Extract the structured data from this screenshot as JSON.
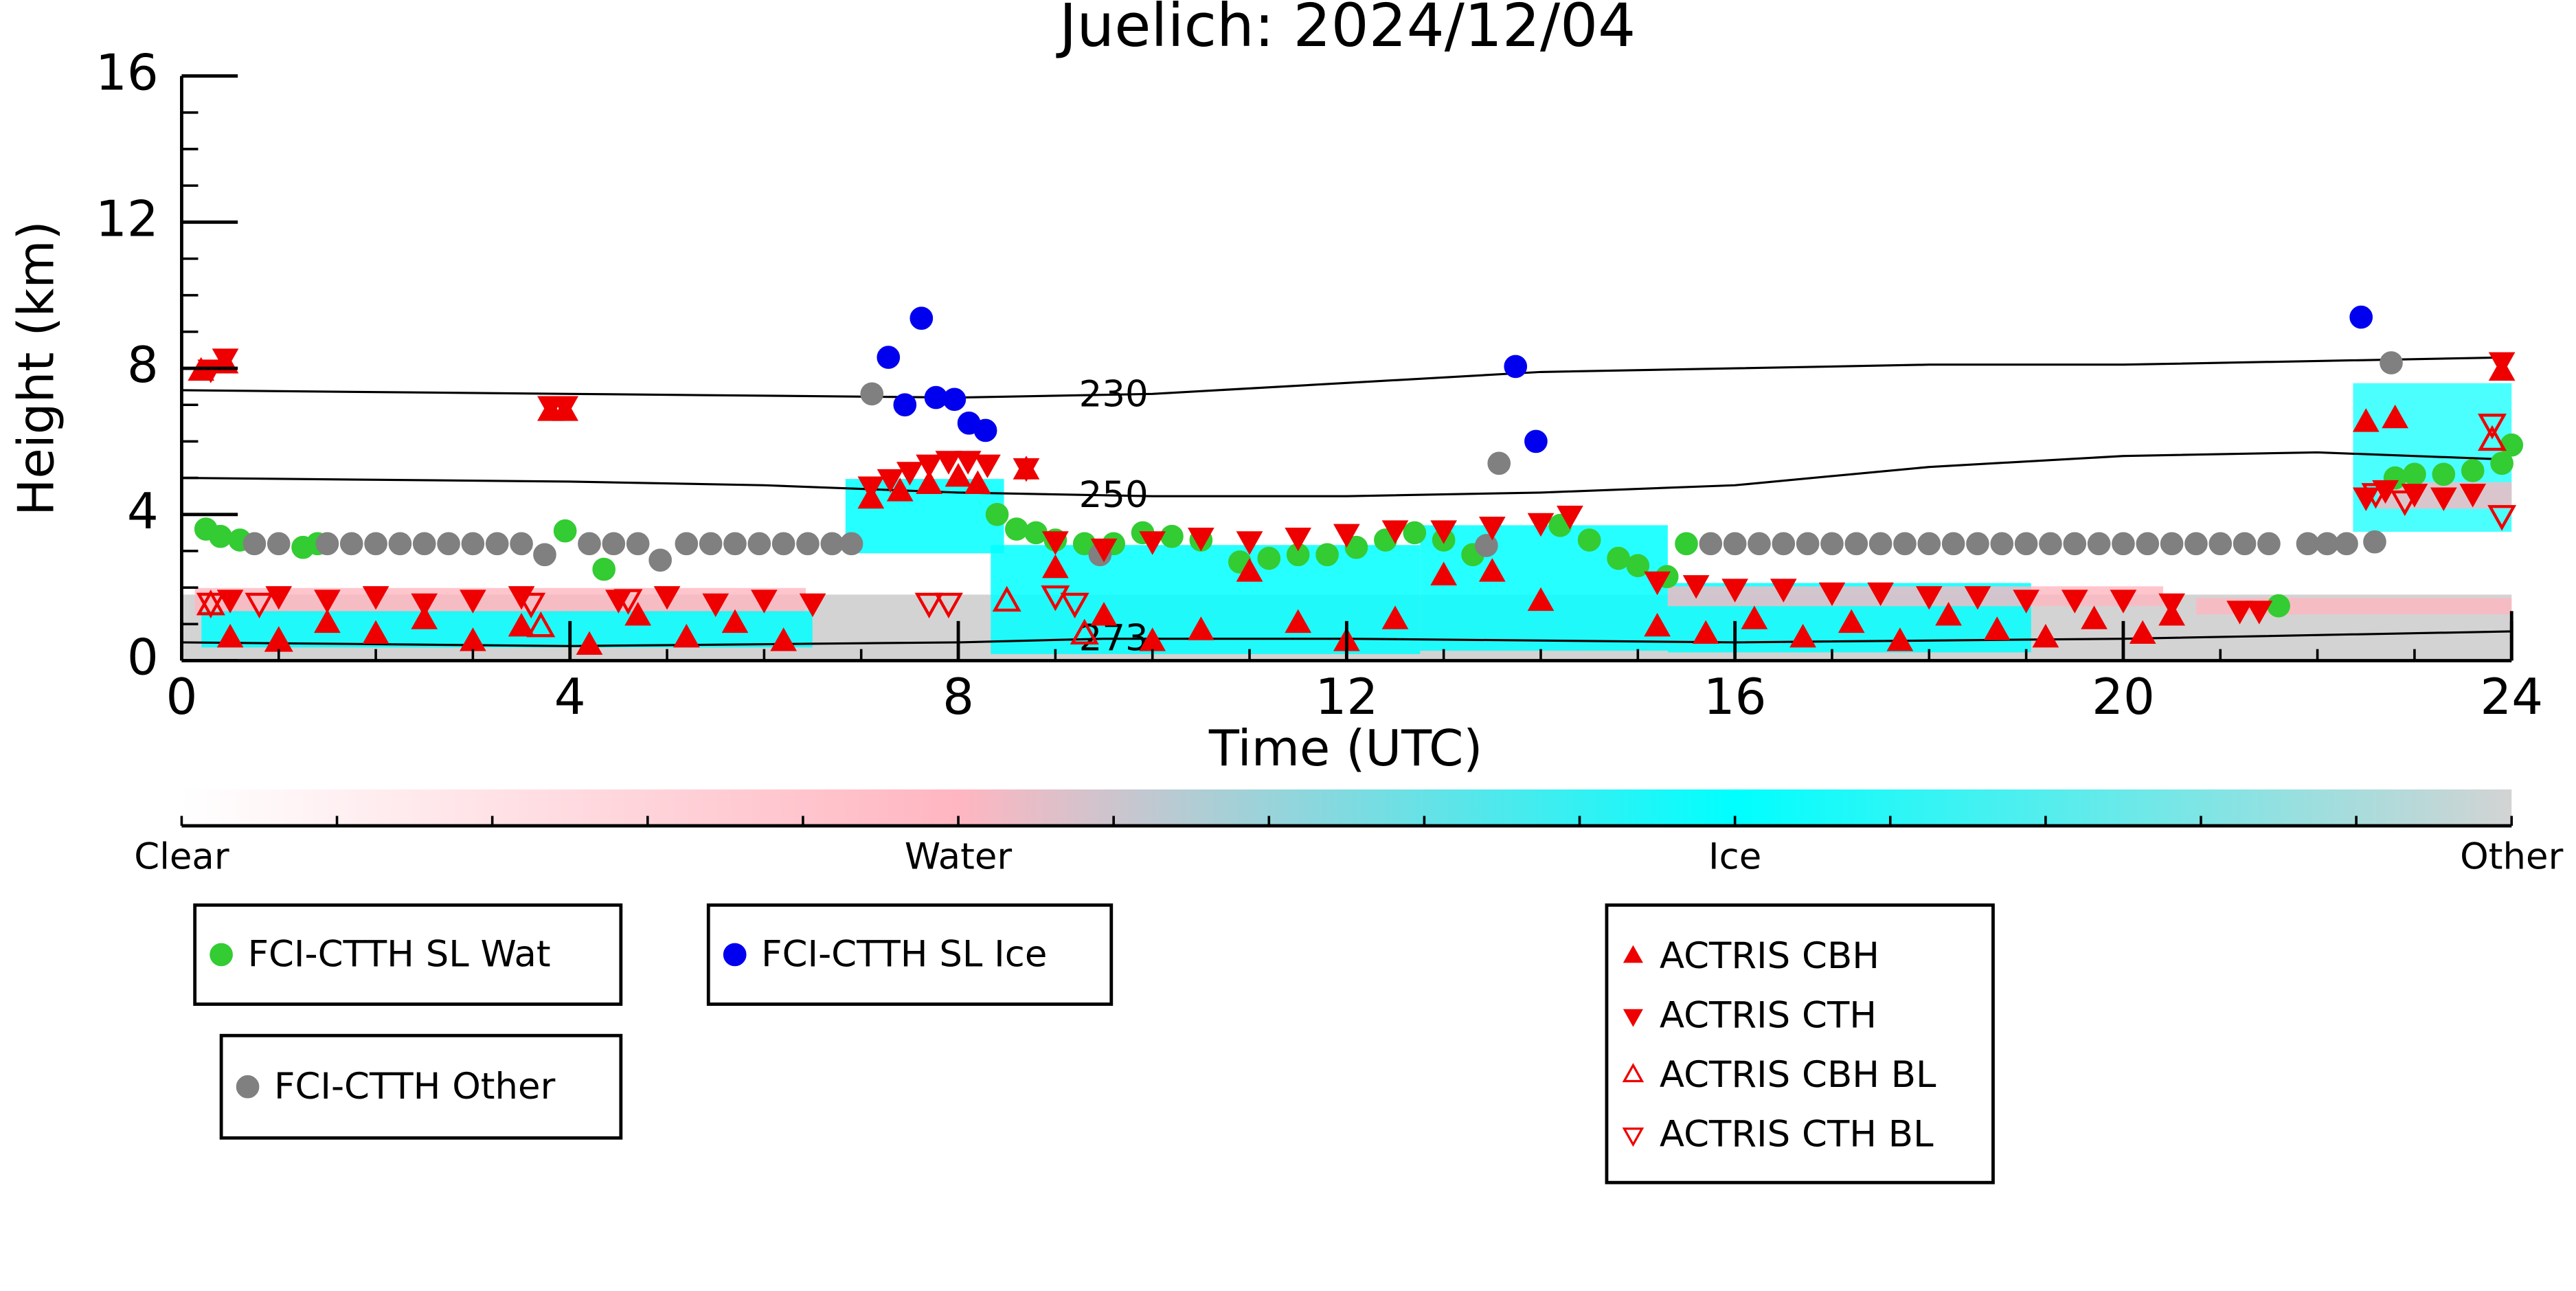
{
  "chart_data": {
    "type": "scatter",
    "title": "Juelich: 2024/12/04",
    "x_label": "Time (UTC)",
    "y_label": "Height (km)",
    "xlim": [
      0,
      24
    ],
    "ylim": [
      0,
      16
    ],
    "xticks": [
      0,
      4,
      8,
      12,
      16,
      20,
      24
    ],
    "yticks": [
      0,
      4,
      8,
      12,
      16
    ],
    "series": [
      {
        "name": "FCI-CTTH SL Wat",
        "color": "#33cc33",
        "marker": "o",
        "filled": true,
        "x": [
          0.25,
          0.4,
          0.6,
          1.25,
          1.4,
          3.95,
          4.35,
          8.4,
          8.6,
          8.8,
          9.0,
          9.3,
          9.6,
          9.9,
          10.2,
          10.5,
          10.9,
          11.2,
          11.5,
          11.8,
          12.1,
          12.4,
          12.7,
          13.0,
          13.3,
          14.2,
          14.5,
          14.8,
          15.0,
          15.3,
          15.5,
          21.6,
          22.8,
          23.0,
          23.3,
          23.6,
          23.9,
          24.0
        ],
        "values": [
          3.6,
          3.4,
          3.3,
          3.1,
          3.2,
          3.55,
          2.5,
          4.0,
          3.6,
          3.5,
          3.3,
          3.2,
          3.2,
          3.5,
          3.4,
          3.3,
          2.7,
          2.8,
          2.9,
          2.9,
          3.1,
          3.3,
          3.5,
          3.3,
          2.9,
          3.7,
          3.3,
          2.8,
          2.6,
          2.3,
          3.2,
          1.5,
          5.0,
          5.1,
          5.1,
          5.2,
          5.4,
          5.9
        ]
      },
      {
        "name": "FCI-CTTH SL Ice",
        "color": "#0000ee",
        "marker": "o",
        "filled": true,
        "x": [
          7.28,
          7.45,
          7.62,
          7.77,
          7.96,
          8.11,
          8.28,
          13.74,
          13.95,
          22.45
        ],
        "values": [
          8.3,
          7.0,
          9.37,
          7.2,
          7.15,
          6.5,
          6.3,
          8.05,
          6.0,
          9.4
        ]
      },
      {
        "name": "FCI-CTTH Other",
        "color": "#808080",
        "marker": "o",
        "filled": true,
        "x": [
          0.75,
          1.0,
          1.5,
          1.75,
          2.0,
          2.25,
          2.5,
          2.75,
          3.0,
          3.25,
          3.5,
          3.74,
          4.2,
          4.45,
          4.7,
          4.93,
          5.2,
          5.45,
          5.7,
          5.95,
          6.2,
          6.45,
          6.7,
          6.9,
          7.11,
          9.46,
          13.44,
          13.57,
          15.75,
          16.0,
          16.25,
          16.5,
          16.75,
          17.0,
          17.25,
          17.5,
          17.75,
          18.0,
          18.25,
          18.5,
          18.75,
          19.0,
          19.25,
          19.5,
          19.75,
          20.0,
          20.25,
          20.5,
          20.75,
          21.0,
          21.25,
          21.5,
          21.9,
          22.1,
          22.3,
          22.59,
          22.76
        ],
        "values": [
          3.2,
          3.2,
          3.2,
          3.2,
          3.2,
          3.2,
          3.2,
          3.2,
          3.2,
          3.2,
          3.2,
          2.9,
          3.2,
          3.2,
          3.2,
          2.75,
          3.2,
          3.2,
          3.2,
          3.2,
          3.2,
          3.2,
          3.2,
          3.2,
          7.3,
          2.9,
          3.15,
          5.4,
          3.2,
          3.2,
          3.2,
          3.2,
          3.2,
          3.2,
          3.2,
          3.2,
          3.2,
          3.2,
          3.2,
          3.2,
          3.2,
          3.2,
          3.2,
          3.2,
          3.2,
          3.2,
          3.2,
          3.2,
          3.2,
          3.2,
          3.2,
          3.2,
          3.2,
          3.2,
          3.2,
          3.25,
          8.15
        ]
      },
      {
        "name": "ACTRIS CBH",
        "color": "#ee0000",
        "marker": "^",
        "filled": true,
        "x": [
          0.2,
          0.45,
          0.5,
          1.0,
          1.5,
          2.0,
          2.5,
          3.0,
          3.5,
          3.8,
          3.95,
          4.2,
          4.7,
          5.2,
          5.7,
          6.2,
          7.1,
          7.4,
          7.7,
          8.0,
          8.2,
          8.7,
          9.0,
          9.5,
          10.0,
          10.5,
          11.0,
          11.5,
          12.0,
          12.5,
          13.0,
          13.5,
          14.0,
          15.2,
          15.7,
          16.2,
          16.7,
          17.2,
          17.7,
          18.2,
          18.7,
          19.2,
          19.7,
          20.2,
          20.5,
          22.5,
          22.8,
          23.9
        ],
        "values": [
          7.9,
          8.1,
          0.6,
          0.5,
          1.0,
          0.7,
          1.1,
          0.5,
          0.9,
          6.8,
          6.8,
          0.4,
          1.2,
          0.6,
          1.0,
          0.5,
          4.4,
          4.6,
          4.8,
          5.0,
          4.8,
          5.2,
          2.5,
          1.2,
          0.5,
          0.8,
          2.4,
          1.0,
          0.5,
          1.1,
          2.3,
          2.4,
          1.6,
          0.9,
          0.7,
          1.1,
          0.6,
          1.0,
          0.5,
          1.2,
          0.8,
          0.6,
          1.1,
          0.7,
          1.2,
          6.5,
          6.6,
          7.9
        ]
      },
      {
        "name": "ACTRIS CTH",
        "color": "#ee0000",
        "marker": "v",
        "filled": true,
        "x": [
          0.3,
          0.45,
          0.5,
          1.0,
          1.5,
          2.0,
          2.5,
          3.0,
          3.5,
          3.8,
          3.95,
          4.5,
          5.0,
          5.5,
          6.0,
          6.5,
          7.1,
          7.3,
          7.5,
          7.7,
          7.9,
          8.1,
          8.3,
          8.7,
          9.0,
          9.5,
          10.0,
          10.5,
          11.0,
          11.5,
          12.0,
          12.5,
          13.0,
          13.5,
          14.0,
          14.3,
          15.2,
          15.6,
          16.0,
          16.5,
          17.0,
          17.5,
          18.0,
          18.5,
          19.0,
          19.5,
          20.0,
          20.5,
          21.2,
          21.4,
          22.5,
          22.7,
          23.0,
          23.3,
          23.6,
          23.9
        ],
        "values": [
          8.0,
          8.3,
          1.7,
          1.8,
          1.7,
          1.8,
          1.6,
          1.7,
          1.8,
          7.0,
          7.0,
          1.7,
          1.8,
          1.6,
          1.7,
          1.6,
          4.8,
          5.0,
          5.2,
          5.4,
          5.5,
          5.5,
          5.4,
          5.3,
          3.3,
          3.1,
          3.3,
          3.4,
          3.3,
          3.4,
          3.5,
          3.6,
          3.6,
          3.7,
          3.8,
          4.0,
          2.2,
          2.1,
          2.0,
          2.0,
          1.9,
          1.9,
          1.8,
          1.8,
          1.7,
          1.7,
          1.7,
          1.6,
          1.4,
          1.4,
          4.5,
          4.7,
          4.6,
          4.5,
          4.6,
          8.2
        ]
      },
      {
        "name": "ACTRIS CBH BL",
        "color": "#ee0000",
        "marker": "^",
        "filled": false,
        "x": [
          0.3,
          1.0,
          3.7,
          8.5,
          9.3,
          23.8
        ],
        "values": [
          1.5,
          0.5,
          0.9,
          1.6,
          0.7,
          6.0
        ]
      },
      {
        "name": "ACTRIS CTH BL",
        "color": "#ee0000",
        "marker": "v",
        "filled": false,
        "x": [
          0.3,
          0.8,
          3.6,
          4.6,
          7.7,
          7.9,
          9.0,
          9.2,
          22.6,
          22.9,
          23.8,
          23.9
        ],
        "values": [
          1.6,
          1.6,
          1.6,
          1.7,
          1.6,
          1.6,
          1.8,
          1.6,
          4.6,
          4.4,
          6.5,
          4.0
        ]
      }
    ],
    "contours": [
      {
        "level": 230,
        "x": [
          0,
          4,
          8,
          10,
          12,
          14,
          16,
          18,
          20,
          22,
          24
        ],
        "values": [
          7.4,
          7.3,
          7.2,
          7.3,
          7.6,
          7.9,
          8.0,
          8.1,
          8.1,
          8.2,
          8.3
        ]
      },
      {
        "level": 250,
        "x": [
          0,
          4,
          6,
          8,
          10,
          12,
          14,
          16,
          18,
          20,
          22,
          24
        ],
        "values": [
          5.0,
          4.9,
          4.8,
          4.6,
          4.5,
          4.5,
          4.6,
          4.8,
          5.3,
          5.6,
          5.7,
          5.5
        ]
      },
      {
        "level": 273,
        "x": [
          0,
          4,
          8,
          9.5,
          12,
          16,
          20,
          24
        ],
        "values": [
          0.5,
          0.4,
          0.5,
          0.6,
          0.6,
          0.5,
          0.6,
          0.8
        ]
      }
    ],
    "colorbar": {
      "labels": [
        "Clear",
        "Water",
        "Ice",
        "Other"
      ],
      "colors": [
        "#ffffff",
        "#ffb6c1",
        "#00ffff",
        "#d3d3d3"
      ]
    }
  }
}
